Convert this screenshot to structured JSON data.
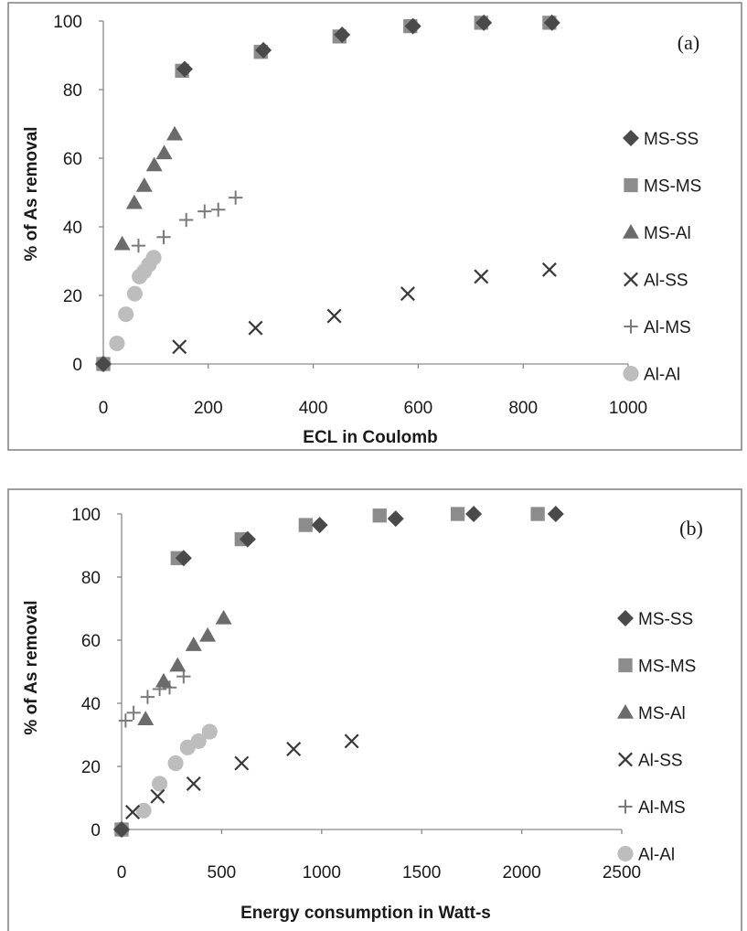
{
  "chart_data": [
    {
      "type": "scatter",
      "panel_label": "(a)",
      "xlabel": "ECL in Coulomb",
      "ylabel": "% of As removal",
      "xlim": [
        0,
        1000
      ],
      "ylim": [
        0,
        100
      ],
      "xticks": [
        0,
        200,
        400,
        600,
        800,
        1000
      ],
      "yticks": [
        0,
        20,
        40,
        60,
        80,
        100
      ],
      "grid": false,
      "legend": "right",
      "series": [
        {
          "name": "MS-SS",
          "marker": "diamond",
          "color": "#4a4a4a",
          "points": [
            [
              0,
              0
            ],
            [
              155,
              86
            ],
            [
              305,
              91.5
            ],
            [
              455,
              96
            ],
            [
              590,
              98.5
            ],
            [
              725,
              99.5
            ],
            [
              855,
              99.5
            ]
          ]
        },
        {
          "name": "MS-MS",
          "marker": "square",
          "color": "#8c8c8c",
          "points": [
            [
              0,
              0
            ],
            [
              150,
              85.5
            ],
            [
              300,
              91
            ],
            [
              450,
              95.5
            ],
            [
              585,
              98.5
            ],
            [
              720,
              99.5
            ],
            [
              850,
              99.5
            ]
          ]
        },
        {
          "name": "MS-Al",
          "marker": "triangle",
          "color": "#6b6b6b",
          "points": [
            [
              36,
              35
            ],
            [
              59,
              47
            ],
            [
              78,
              52
            ],
            [
              97,
              58
            ],
            [
              116,
              61.5
            ],
            [
              136,
              67
            ]
          ]
        },
        {
          "name": "Al-SS",
          "marker": "x",
          "color": "#3a3a3a",
          "points": [
            [
              145,
              5
            ],
            [
              290,
              10.5
            ],
            [
              440,
              14
            ],
            [
              580,
              20.5
            ],
            [
              720,
              25.5
            ],
            [
              850,
              27.5
            ]
          ]
        },
        {
          "name": "Al-MS",
          "marker": "plus",
          "color": "#7a7a7a",
          "points": [
            [
              67,
              34.5
            ],
            [
              115,
              37
            ],
            [
              158,
              42
            ],
            [
              193,
              44.5
            ],
            [
              219,
              45
            ],
            [
              252,
              48.5
            ]
          ]
        },
        {
          "name": "Al-Al",
          "marker": "circle",
          "color": "#bdbdbd",
          "points": [
            [
              0,
              0
            ],
            [
              26,
              6
            ],
            [
              43,
              14.5
            ],
            [
              60,
              20.5
            ],
            [
              69,
              25.5
            ],
            [
              78,
              27
            ],
            [
              87,
              29
            ],
            [
              96,
              31
            ]
          ]
        }
      ]
    },
    {
      "type": "scatter",
      "panel_label": "(b)",
      "xlabel": "Energy consumption in Watt-s",
      "ylabel": "% of As removal",
      "xlim": [
        0,
        2500
      ],
      "ylim": [
        0,
        100
      ],
      "xticks": [
        0,
        500,
        1000,
        1500,
        2000,
        2500
      ],
      "yticks": [
        0,
        20,
        40,
        60,
        80,
        100
      ],
      "grid": false,
      "legend": "right",
      "series": [
        {
          "name": "MS-SS",
          "marker": "diamond",
          "color": "#4a4a4a",
          "points": [
            [
              0,
              0
            ],
            [
              310,
              86
            ],
            [
              630,
              92
            ],
            [
              990,
              96.5
            ],
            [
              1370,
              98.5
            ],
            [
              1760,
              100
            ],
            [
              2170,
              100
            ]
          ]
        },
        {
          "name": "MS-MS",
          "marker": "square",
          "color": "#8c8c8c",
          "points": [
            [
              0,
              0
            ],
            [
              280,
              86
            ],
            [
              600,
              92
            ],
            [
              920,
              96.5
            ],
            [
              1290,
              99.5
            ],
            [
              1680,
              100
            ],
            [
              2080,
              100
            ]
          ]
        },
        {
          "name": "MS-Al",
          "marker": "triangle",
          "color": "#6b6b6b",
          "points": [
            [
              120,
              35
            ],
            [
              210,
              47
            ],
            [
              280,
              52
            ],
            [
              360,
              58.5
            ],
            [
              430,
              61.5
            ],
            [
              510,
              67
            ]
          ]
        },
        {
          "name": "Al-SS",
          "marker": "x",
          "color": "#3a3a3a",
          "points": [
            [
              55,
              5.5
            ],
            [
              180,
              10.5
            ],
            [
              360,
              14.5
            ],
            [
              600,
              21
            ],
            [
              860,
              25.5
            ],
            [
              1150,
              28
            ]
          ]
        },
        {
          "name": "Al-MS",
          "marker": "plus",
          "color": "#7a7a7a",
          "points": [
            [
              20,
              34.5
            ],
            [
              60,
              37
            ],
            [
              130,
              42
            ],
            [
              190,
              44.5
            ],
            [
              240,
              45
            ],
            [
              310,
              48.5
            ]
          ]
        },
        {
          "name": "Al-Al",
          "marker": "circle",
          "color": "#bdbdbd",
          "points": [
            [
              0,
              0
            ],
            [
              110,
              6
            ],
            [
              190,
              14.5
            ],
            [
              270,
              21
            ],
            [
              330,
              26
            ],
            [
              385,
              28
            ],
            [
              440,
              31
            ]
          ]
        }
      ]
    }
  ]
}
